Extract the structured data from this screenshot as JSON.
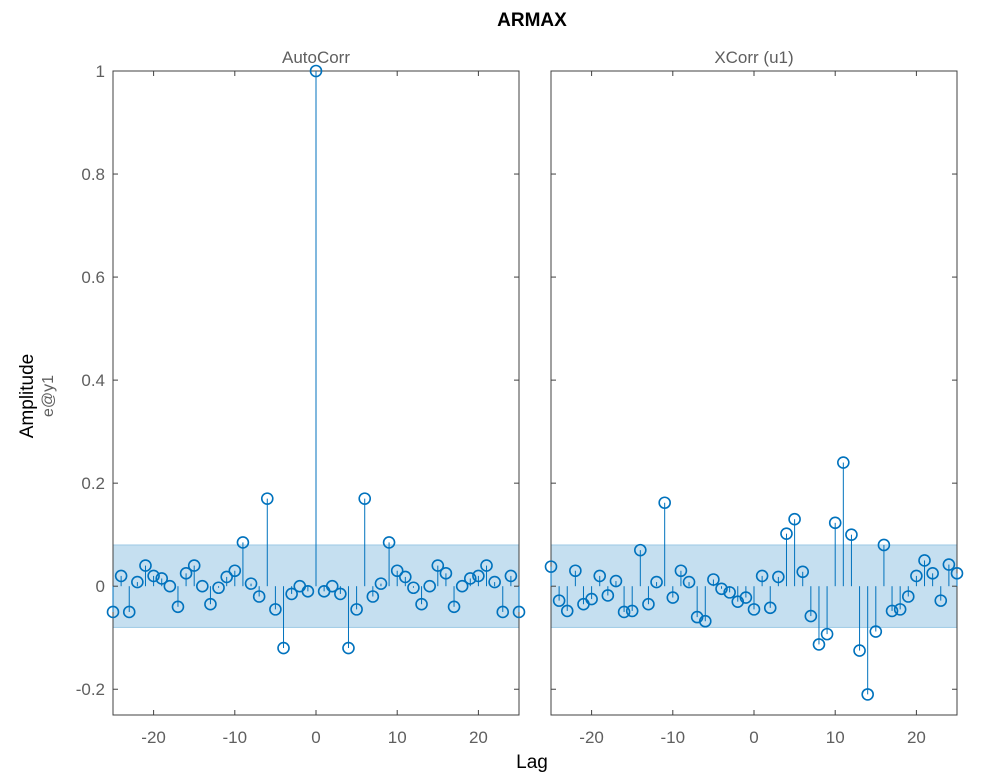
{
  "figure": {
    "title": "ARMAX",
    "ylabel": "Amplitude",
    "ylabel_sub": "e@y1",
    "xlabel": "Lag"
  },
  "colors": {
    "stem": "#0072BD",
    "band_fill": "#C5DFF0",
    "band_stroke": "#9CC9E5",
    "axis": "#404040",
    "tick_text": "#5f5f5f",
    "label_text": "#000000"
  },
  "chart_data": [
    {
      "type": "stem",
      "title": "AutoCorr",
      "xlim": [
        -25,
        25
      ],
      "ylim": [
        -0.25,
        1.0
      ],
      "x_ticks": [
        -20,
        -10,
        0,
        10,
        20
      ],
      "y_ticks": [
        -0.2,
        0,
        0.2,
        0.4,
        0.6,
        0.8,
        1
      ],
      "y_tick_labels": [
        "-0.2",
        "0",
        "0.2",
        "0.4",
        "0.6",
        "0.8",
        "1"
      ],
      "confidence_band": [
        -0.08,
        0.08
      ],
      "x": [
        -25,
        -24,
        -23,
        -22,
        -21,
        -20,
        -19,
        -18,
        -17,
        -16,
        -15,
        -14,
        -13,
        -12,
        -11,
        -10,
        -9,
        -8,
        -7,
        -6,
        -5,
        -4,
        -3,
        -2,
        -1,
        0,
        1,
        2,
        3,
        4,
        5,
        6,
        7,
        8,
        9,
        10,
        11,
        12,
        13,
        14,
        15,
        16,
        17,
        18,
        19,
        20,
        21,
        22,
        23,
        24,
        25
      ],
      "y": [
        -0.05,
        0.02,
        -0.05,
        0.008,
        0.04,
        0.02,
        0.015,
        0.0,
        -0.04,
        0.025,
        0.04,
        0.0,
        -0.035,
        -0.003,
        0.018,
        0.03,
        0.085,
        0.005,
        -0.02,
        0.17,
        -0.045,
        -0.12,
        -0.015,
        0.0,
        -0.01,
        1.0,
        -0.01,
        0.0,
        -0.015,
        -0.12,
        -0.045,
        0.17,
        -0.02,
        0.005,
        0.085,
        0.03,
        0.018,
        -0.003,
        -0.035,
        0.0,
        0.04,
        0.025,
        -0.04,
        0.0,
        0.015,
        0.02,
        0.04,
        0.008,
        -0.05,
        0.02,
        -0.05
      ]
    },
    {
      "type": "stem",
      "title": "XCorr (u1)",
      "xlim": [
        -25,
        25
      ],
      "ylim": [
        -0.25,
        1.0
      ],
      "x_ticks": [
        -20,
        -10,
        0,
        10,
        20
      ],
      "confidence_band": [
        -0.08,
        0.08
      ],
      "x": [
        -25,
        -24,
        -23,
        -22,
        -21,
        -20,
        -19,
        -18,
        -17,
        -16,
        -15,
        -14,
        -13,
        -12,
        -11,
        -10,
        -9,
        -8,
        -7,
        -6,
        -5,
        -4,
        -3,
        -2,
        -1,
        0,
        1,
        2,
        3,
        4,
        5,
        6,
        7,
        8,
        9,
        10,
        11,
        12,
        13,
        14,
        15,
        16,
        17,
        18,
        19,
        20,
        21,
        22,
        23,
        24,
        25
      ],
      "y": [
        0.038,
        -0.028,
        -0.048,
        0.03,
        -0.035,
        -0.025,
        0.02,
        -0.018,
        0.01,
        -0.05,
        -0.048,
        0.07,
        -0.035,
        0.008,
        0.162,
        -0.022,
        0.03,
        0.008,
        -0.06,
        -0.068,
        0.013,
        -0.005,
        -0.012,
        -0.03,
        -0.022,
        -0.045,
        0.02,
        -0.042,
        0.018,
        0.102,
        0.13,
        0.028,
        -0.058,
        -0.113,
        -0.093,
        0.123,
        0.24,
        0.1,
        -0.125,
        -0.21,
        -0.088,
        0.08,
        -0.048,
        -0.045,
        -0.02,
        0.02,
        0.05,
        0.025,
        -0.028,
        0.042,
        0.025
      ]
    }
  ]
}
